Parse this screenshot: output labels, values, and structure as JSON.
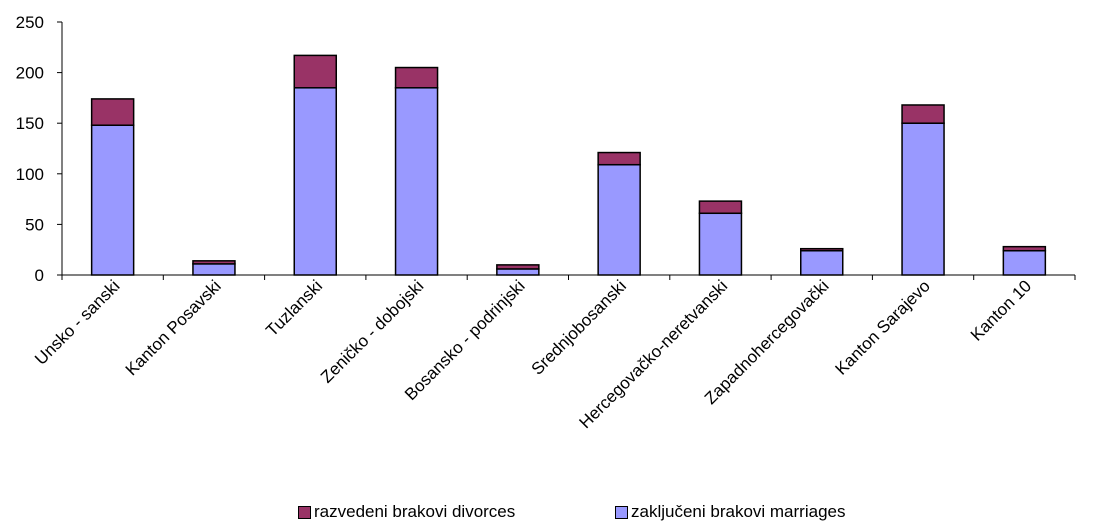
{
  "chart_data": {
    "type": "bar",
    "stacked": true,
    "title": "",
    "xlabel": "",
    "ylabel": "",
    "ylim": [
      0,
      250
    ],
    "yticks": [
      0,
      50,
      100,
      150,
      200,
      250
    ],
    "grid": false,
    "legend_position": "bottom",
    "categories": [
      "Unsko - sanski",
      "Kanton Posavski",
      "Tuzlanski",
      "Zeničko - dobojski",
      "Bosansko - podrinjski",
      "Srednjobosanski",
      "Hercegovačko-neretvanski",
      "Zapadnohercegovački",
      "Kanton Sarajevo",
      "Kanton 10"
    ],
    "series": [
      {
        "name": "zaključeni brakovi marriages",
        "color": "#9999ff",
        "values": [
          148,
          11,
          185,
          185,
          6,
          109,
          61,
          24,
          150,
          24
        ]
      },
      {
        "name": "razvedeni brakovi divorces",
        "color": "#993366",
        "values": [
          26,
          3,
          32,
          20,
          4,
          12,
          12,
          2,
          18,
          4
        ]
      }
    ]
  }
}
